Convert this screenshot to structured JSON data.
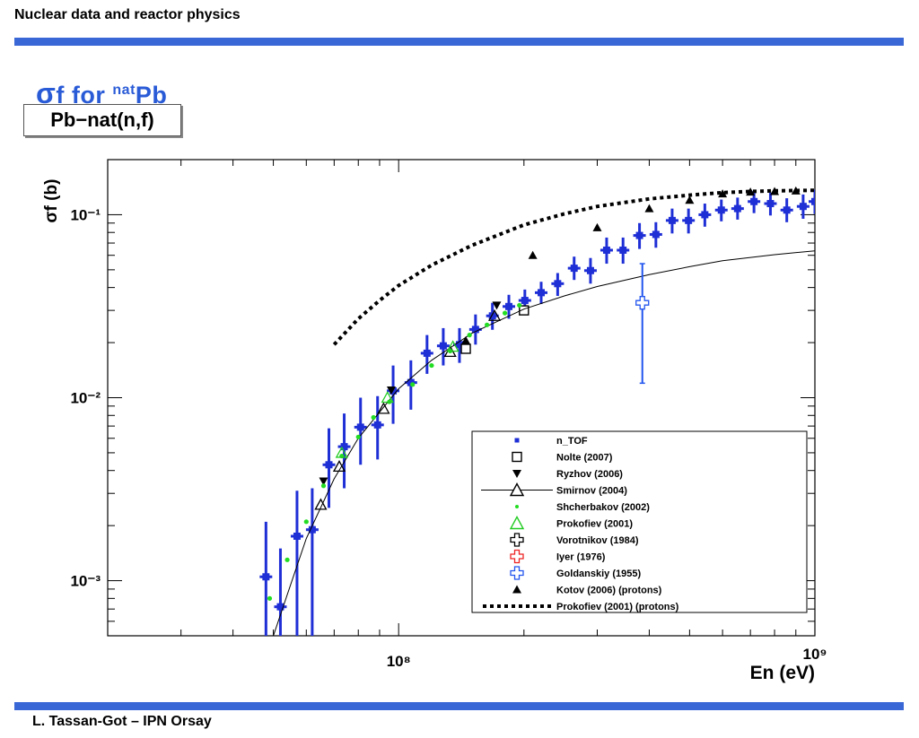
{
  "header": {
    "title": "Nuclear data and reactor physics"
  },
  "slide": {
    "title_sigma": "σ",
    "title_rest": "f  for ",
    "title_sup": "nat",
    "title_elem": "Pb"
  },
  "plot_label": "Pb−nat(n,f)",
  "footer": "L. Tassan-Got – IPN Orsay",
  "colors": {
    "bar": "#3a67d6",
    "ntof": "#1f2fd6",
    "title": "#2a5bd7"
  },
  "chart_data": {
    "type": "scatter",
    "xscale": "log",
    "yscale": "log",
    "xlim": [
      20000000.0,
      1000000000.0
    ],
    "ylim": [
      0.0005,
      0.2
    ],
    "xlabel": "En (eV)",
    "ylabel": "σf (b)",
    "x_ticks": [
      "10⁸",
      "10⁹"
    ],
    "y_ticks": [
      "10⁻¹",
      "10⁻²",
      "10⁻³"
    ],
    "grid": false,
    "legend_placement": "bottom-right",
    "series": [
      {
        "name": "n_TOF",
        "marker": "filled-square",
        "color": "#1f2fd6",
        "points": [
          {
            "x": 48000000.0,
            "y": 0.00105,
            "ylo": 0.0005,
            "yhi": 0.0021
          },
          {
            "x": 52000000.0,
            "y": 0.00072,
            "ylo": 0.0005,
            "yhi": 0.0015
          },
          {
            "x": 57000000.0,
            "y": 0.00175,
            "ylo": 0.0005,
            "yhi": 0.0031
          },
          {
            "x": 62000000.0,
            "y": 0.0019,
            "ylo": 0.0005,
            "yhi": 0.0032
          },
          {
            "x": 68000000.0,
            "y": 0.0043,
            "ylo": 0.0025,
            "yhi": 0.0068
          },
          {
            "x": 74000000.0,
            "y": 0.0054,
            "ylo": 0.0032,
            "yhi": 0.0082
          },
          {
            "x": 81000000.0,
            "y": 0.0069,
            "ylo": 0.0043,
            "yhi": 0.01
          },
          {
            "x": 89000000.0,
            "y": 0.0071,
            "ylo": 0.0046,
            "yhi": 0.0102
          },
          {
            "x": 97000000.0,
            "y": 0.0109,
            "ylo": 0.0072,
            "yhi": 0.015
          },
          {
            "x": 107000000.0,
            "y": 0.0121,
            "ylo": 0.0086,
            "yhi": 0.016
          },
          {
            "x": 117000000.0,
            "y": 0.0175,
            "ylo": 0.0135,
            "yhi": 0.022
          },
          {
            "x": 128000000.0,
            "y": 0.0192,
            "ylo": 0.015,
            "yhi": 0.024
          },
          {
            "x": 140000000.0,
            "y": 0.0195,
            "ylo": 0.0155,
            "yhi": 0.024
          },
          {
            "x": 153000000.0,
            "y": 0.0236,
            "ylo": 0.0195,
            "yhi": 0.0285
          },
          {
            "x": 168000000.0,
            "y": 0.028,
            "ylo": 0.0235,
            "yhi": 0.033
          },
          {
            "x": 184000000.0,
            "y": 0.0315,
            "ylo": 0.027,
            "yhi": 0.0365
          },
          {
            "x": 201000000.0,
            "y": 0.034,
            "ylo": 0.0295,
            "yhi": 0.039
          },
          {
            "x": 220000000.0,
            "y": 0.0375,
            "ylo": 0.0325,
            "yhi": 0.043
          },
          {
            "x": 241000000.0,
            "y": 0.042,
            "ylo": 0.036,
            "yhi": 0.048
          },
          {
            "x": 264000000.0,
            "y": 0.051,
            "ylo": 0.044,
            "yhi": 0.059
          },
          {
            "x": 289000000.0,
            "y": 0.0495,
            "ylo": 0.042,
            "yhi": 0.058
          },
          {
            "x": 316000000.0,
            "y": 0.064,
            "ylo": 0.054,
            "yhi": 0.075
          },
          {
            "x": 346000000.0,
            "y": 0.064,
            "ylo": 0.054,
            "yhi": 0.075
          },
          {
            "x": 379000000.0,
            "y": 0.077,
            "ylo": 0.065,
            "yhi": 0.09
          },
          {
            "x": 415000000.0,
            "y": 0.078,
            "ylo": 0.066,
            "yhi": 0.091
          },
          {
            "x": 454000000.0,
            "y": 0.093,
            "ylo": 0.079,
            "yhi": 0.108
          },
          {
            "x": 497000000.0,
            "y": 0.093,
            "ylo": 0.079,
            "yhi": 0.108
          },
          {
            "x": 544000000.0,
            "y": 0.1,
            "ylo": 0.086,
            "yhi": 0.115
          },
          {
            "x": 596000000.0,
            "y": 0.106,
            "ylo": 0.092,
            "yhi": 0.121
          },
          {
            "x": 652000000.0,
            "y": 0.108,
            "ylo": 0.094,
            "yhi": 0.124
          },
          {
            "x": 714000000.0,
            "y": 0.118,
            "ylo": 0.102,
            "yhi": 0.135
          },
          {
            "x": 782000000.0,
            "y": 0.115,
            "ylo": 0.099,
            "yhi": 0.132
          },
          {
            "x": 856000000.0,
            "y": 0.106,
            "ylo": 0.091,
            "yhi": 0.123
          },
          {
            "x": 937000000.0,
            "y": 0.111,
            "ylo": 0.095,
            "yhi": 0.129
          },
          {
            "x": 1000000000.0,
            "y": 0.118,
            "ylo": 0.101,
            "yhi": 0.137
          }
        ]
      },
      {
        "name": "Nolte (2007)",
        "marker": "open-square",
        "color": "#000000",
        "points": [
          {
            "x": 145000000.0,
            "y": 0.0185
          },
          {
            "x": 200000000.0,
            "y": 0.03
          }
        ]
      },
      {
        "name": "Ryzhov (2006)",
        "marker": "filled-triangle-down",
        "color": "#000000",
        "points": [
          {
            "x": 66000000.0,
            "y": 0.0035
          },
          {
            "x": 96000000.0,
            "y": 0.011
          },
          {
            "x": 172000000.0,
            "y": 0.032
          }
        ]
      },
      {
        "name": "Smirnov (2004)",
        "marker": "open-triangle-line",
        "color": "#000000",
        "points": [
          {
            "x": 65000000.0,
            "y": 0.0026
          },
          {
            "x": 72000000.0,
            "y": 0.0042
          },
          {
            "x": 92000000.0,
            "y": 0.0087
          },
          {
            "x": 133000000.0,
            "y": 0.0178
          },
          {
            "x": 170000000.0,
            "y": 0.028
          }
        ],
        "curve": [
          {
            "x": 50000000.0,
            "y": 0.0005
          },
          {
            "x": 55000000.0,
            "y": 0.00095
          },
          {
            "x": 60000000.0,
            "y": 0.0017
          },
          {
            "x": 70000000.0,
            "y": 0.0036
          },
          {
            "x": 80000000.0,
            "y": 0.006
          },
          {
            "x": 100000000.0,
            "y": 0.0112
          },
          {
            "x": 120000000.0,
            "y": 0.016
          },
          {
            "x": 150000000.0,
            "y": 0.0225
          },
          {
            "x": 200000000.0,
            "y": 0.0305
          },
          {
            "x": 250000000.0,
            "y": 0.036
          },
          {
            "x": 300000000.0,
            "y": 0.0405
          },
          {
            "x": 400000000.0,
            "y": 0.047
          },
          {
            "x": 500000000.0,
            "y": 0.052
          },
          {
            "x": 600000000.0,
            "y": 0.056
          },
          {
            "x": 800000000.0,
            "y": 0.0605
          },
          {
            "x": 1000000000.0,
            "y": 0.0635
          }
        ]
      },
      {
        "name": "Shcherbakov (2002)",
        "marker": "small-dot",
        "color": "#22dd22",
        "points": [
          {
            "x": 49000000.0,
            "y": 0.0008
          },
          {
            "x": 54000000.0,
            "y": 0.0013
          },
          {
            "x": 60000000.0,
            "y": 0.0021
          },
          {
            "x": 66000000.0,
            "y": 0.0033
          },
          {
            "x": 73000000.0,
            "y": 0.0048
          },
          {
            "x": 80000000.0,
            "y": 0.0061
          },
          {
            "x": 87000000.0,
            "y": 0.0078
          },
          {
            "x": 95000000.0,
            "y": 0.0095
          },
          {
            "x": 108000000.0,
            "y": 0.0118
          },
          {
            "x": 120000000.0,
            "y": 0.015
          },
          {
            "x": 133000000.0,
            "y": 0.018
          },
          {
            "x": 148000000.0,
            "y": 0.022
          },
          {
            "x": 163000000.0,
            "y": 0.025
          },
          {
            "x": 180000000.0,
            "y": 0.029
          },
          {
            "x": 195000000.0,
            "y": 0.032
          }
        ]
      },
      {
        "name": "Prokofiev (2001)",
        "marker": "open-triangle",
        "color": "#22cc22",
        "points": [
          {
            "x": 73000000.0,
            "y": 0.005
          },
          {
            "x": 94000000.0,
            "y": 0.01
          },
          {
            "x": 135000000.0,
            "y": 0.019
          }
        ]
      },
      {
        "name": "Vorotnikov (1984)",
        "marker": "open-cross",
        "color": "#000000",
        "points": []
      },
      {
        "name": "Iyer (1976)",
        "marker": "open-cross",
        "color": "#ee2222",
        "points": []
      },
      {
        "name": "Goldanskiy (1955)",
        "marker": "open-cross",
        "color": "#2255ee",
        "points": [
          {
            "x": 385000000.0,
            "y": 0.033,
            "ylo": 0.012,
            "yhi": 0.054
          }
        ]
      },
      {
        "name": "Kotov (2006) (protons)",
        "marker": "filled-triangle",
        "color": "#000000",
        "points": [
          {
            "x": 145000000.0,
            "y": 0.0205
          },
          {
            "x": 210000000.0,
            "y": 0.06
          },
          {
            "x": 300000000.0,
            "y": 0.085
          },
          {
            "x": 400000000.0,
            "y": 0.108
          },
          {
            "x": 500000000.0,
            "y": 0.12
          },
          {
            "x": 600000000.0,
            "y": 0.13
          },
          {
            "x": 700000000.0,
            "y": 0.133
          },
          {
            "x": 800000000.0,
            "y": 0.134
          },
          {
            "x": 900000000.0,
            "y": 0.135
          }
        ]
      },
      {
        "name": "Prokofiev (2001) (protons)",
        "marker": "dashed-line",
        "color": "#000000",
        "curve": [
          {
            "x": 70000000.0,
            "y": 0.0195
          },
          {
            "x": 80000000.0,
            "y": 0.027
          },
          {
            "x": 90000000.0,
            "y": 0.034
          },
          {
            "x": 100000000.0,
            "y": 0.041
          },
          {
            "x": 120000000.0,
            "y": 0.053
          },
          {
            "x": 150000000.0,
            "y": 0.068
          },
          {
            "x": 200000000.0,
            "y": 0.088
          },
          {
            "x": 250000000.0,
            "y": 0.101
          },
          {
            "x": 300000000.0,
            "y": 0.111
          },
          {
            "x": 400000000.0,
            "y": 0.122
          },
          {
            "x": 500000000.0,
            "y": 0.128
          },
          {
            "x": 600000000.0,
            "y": 0.132
          },
          {
            "x": 700000000.0,
            "y": 0.134
          },
          {
            "x": 800000000.0,
            "y": 0.135
          },
          {
            "x": 1000000000.0,
            "y": 0.136
          }
        ]
      }
    ]
  }
}
